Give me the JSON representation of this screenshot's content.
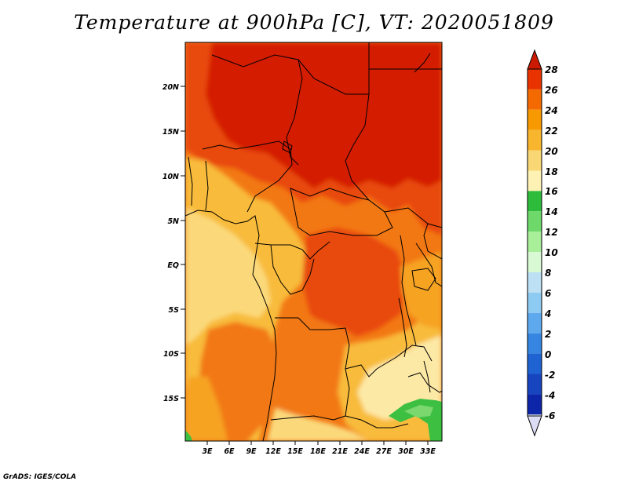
{
  "title": "Temperature at 900hPa [C], VT: 2020051809",
  "credit": "GrADS: IGES/COLA",
  "map": {
    "variable": "Temperature",
    "level": "900hPa",
    "units": "C",
    "valid_time": "2020051809",
    "lat_ticks": [
      "20N",
      "15N",
      "10N",
      "5N",
      "EQ",
      "5S",
      "10S",
      "15S"
    ],
    "lon_ticks": [
      "3E",
      "6E",
      "9E",
      "12E",
      "15E",
      "18E",
      "21E",
      "24E",
      "27E",
      "30E",
      "33E"
    ],
    "colorbar": {
      "labels": [
        "28",
        "26",
        "24",
        "22",
        "20",
        "18",
        "16",
        "14",
        "12",
        "10",
        "8",
        "6",
        "4",
        "2",
        "0",
        "-2",
        "-4",
        "-6"
      ],
      "colors": [
        "#cc1a00",
        "#e83200",
        "#f56a00",
        "#f79900",
        "#f8b52e",
        "#fad775",
        "#fdf2b3",
        "#2dbc3c",
        "#6ed96a",
        "#a9ef9a",
        "#d9f8d4",
        "#bde0f4",
        "#8ecbf2",
        "#5ea9ee",
        "#3685e0",
        "#1f63d2",
        "#1745bf",
        "#0d25a8",
        "#07107a"
      ]
    },
    "field_colors": {
      "hot": "#d41e00",
      "warm": "#e84a0a",
      "orange": "#f27814",
      "amber": "#f6a321",
      "light_orange": "#f8bb3b",
      "pale": "#fbd97a",
      "cream": "#fde9a6",
      "green": "#3dbf42",
      "light_green": "#7ad86f"
    }
  }
}
